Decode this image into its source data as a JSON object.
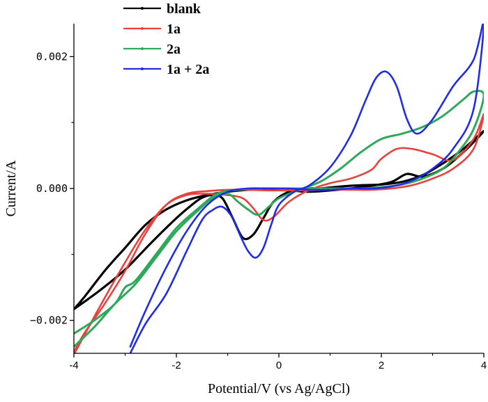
{
  "chart_data": {
    "type": "line",
    "title": "",
    "xlabel": "Potential/V (vs Ag/AgCl)",
    "ylabel": "Current/A",
    "xlim": [
      -4,
      4
    ],
    "ylim": [
      -0.0025,
      0.0025
    ],
    "x_ticks": [
      -4,
      -2,
      0,
      2,
      4
    ],
    "x_tick_labels": [
      "-4",
      "-2",
      "0",
      "2",
      "4"
    ],
    "y_ticks": [
      -0.002,
      0.0,
      0.002
    ],
    "y_tick_labels": [
      "−0.002",
      "0.000",
      "0.002"
    ],
    "grid": false,
    "legend_position": "top-left",
    "series": [
      {
        "name": "blank",
        "color": "#000000",
        "stroke_width": 3.2,
        "x": [
          -4.0,
          -3.5,
          -3.0,
          -2.5,
          -2.0,
          -1.7,
          -1.5,
          -1.3,
          -1.1,
          -0.9,
          -0.7,
          -0.5,
          -0.3,
          -0.1,
          0.2,
          0.6,
          0.8,
          1.2,
          1.6,
          2.0,
          2.4,
          2.8,
          3.2,
          3.6,
          4.0,
          3.6,
          3.2,
          2.8,
          2.5,
          2.2,
          1.8,
          1.4,
          1.0,
          0.6,
          0.2,
          -0.2,
          -0.6,
          -1.0,
          -1.4,
          -1.8,
          -2.2,
          -2.6,
          -3.0,
          -3.4,
          -3.8,
          -4.0
        ],
        "y": [
          -0.00183,
          -0.00155,
          -0.00123,
          -0.00083,
          -0.00045,
          -0.00025,
          -0.00014,
          -0.0001,
          -0.00015,
          -0.00045,
          -0.00075,
          -0.0007,
          -0.00045,
          -0.0002,
          -5e-05,
          0.0,
          0.0,
          3e-05,
          5e-05,
          6e-05,
          0.0001,
          0.0002,
          0.00038,
          0.0006,
          0.00087,
          0.00055,
          0.0003,
          0.00018,
          0.00022,
          0.0001,
          4e-05,
          0.0,
          -3e-05,
          -5e-05,
          -3e-05,
          -2e-05,
          -2e-05,
          -5e-05,
          -0.0001,
          -0.00018,
          -0.00032,
          -0.00055,
          -0.0009,
          -0.00125,
          -0.00165,
          -0.00183
        ]
      },
      {
        "name": "1a",
        "color": "#e8413c",
        "stroke_width": 2.6,
        "x": [
          -4.0,
          -3.5,
          -3.0,
          -2.6,
          -2.2,
          -1.8,
          -1.4,
          -1.0,
          -0.7,
          -0.5,
          -0.3,
          -0.1,
          0.2,
          0.6,
          1.0,
          1.4,
          1.8,
          2.0,
          2.3,
          2.6,
          3.0,
          3.4,
          3.8,
          4.0,
          3.8,
          3.4,
          3.0,
          2.6,
          2.2,
          1.8,
          1.4,
          1.0,
          0.6,
          0.2,
          -0.2,
          -0.6,
          -1.0,
          -1.4,
          -1.8,
          -2.2,
          -2.6,
          -3.0,
          -3.4,
          -3.8,
          -4.0
        ],
        "y": [
          -0.00252,
          -0.0018,
          -0.00112,
          -0.00062,
          -0.00025,
          -0.0001,
          -8e-05,
          -0.0001,
          -0.00015,
          -0.0003,
          -0.00048,
          -0.00043,
          -0.0002,
          -2e-05,
          8e-05,
          0.00015,
          0.00028,
          0.00045,
          0.0006,
          0.0006,
          0.00052,
          0.00043,
          0.00075,
          0.00113,
          0.0006,
          0.0003,
          0.00015,
          5e-05,
          0.0,
          -2e-05,
          -2e-05,
          -2e-05,
          -3e-05,
          -3e-05,
          -3e-05,
          -2e-05,
          -2e-05,
          -4e-05,
          -8e-05,
          -0.00025,
          -0.00068,
          -0.00125,
          -0.00175,
          -0.0022,
          -0.00248
        ]
      },
      {
        "name": "2a",
        "color": "#2ea85a",
        "stroke_width": 3.0,
        "x": [
          -4.0,
          -3.6,
          -3.2,
          -2.8,
          -2.4,
          -2.0,
          -1.6,
          -1.3,
          -1.0,
          -0.8,
          -0.6,
          -0.4,
          -0.2,
          0.0,
          0.4,
          0.8,
          1.2,
          1.6,
          2.0,
          2.4,
          2.8,
          3.2,
          3.6,
          3.8,
          4.0,
          3.8,
          3.5,
          3.2,
          2.8,
          2.4,
          2.0,
          1.6,
          1.2,
          0.8,
          0.4,
          0.0,
          -0.4,
          -0.8,
          -1.2,
          -1.6,
          -2.0,
          -2.4,
          -2.8,
          -3.0,
          -3.2,
          -3.6,
          -4.0
        ],
        "y": [
          -0.0024,
          -0.0021,
          -0.00175,
          -0.00145,
          -0.00105,
          -0.00065,
          -0.00035,
          -0.00015,
          -8e-05,
          -0.0002,
          -0.00032,
          -0.0004,
          -0.00028,
          -0.00015,
          -2e-05,
          0.0001,
          0.0003,
          0.00055,
          0.00075,
          0.00083,
          0.00093,
          0.0011,
          0.00135,
          0.00147,
          0.00141,
          0.0009,
          0.00055,
          0.0003,
          0.00015,
          6e-05,
          2e-05,
          0.0,
          0.0,
          0.0,
          0.0,
          0.0,
          0.0,
          -2e-05,
          -8e-05,
          -0.00032,
          -0.0006,
          -0.001,
          -0.0014,
          -0.0015,
          -0.00175,
          -0.002,
          -0.0022
        ]
      },
      {
        "name": "1a + 2a",
        "color": "#1f2be6",
        "stroke_width": 2.6,
        "x": [
          -2.9,
          -2.6,
          -2.2,
          -1.8,
          -1.5,
          -1.3,
          -1.1,
          -0.9,
          -0.75,
          -0.6,
          -0.45,
          -0.3,
          -0.15,
          0.0,
          0.3,
          0.6,
          1.0,
          1.4,
          1.7,
          1.9,
          2.1,
          2.3,
          2.5,
          2.7,
          3.0,
          3.4,
          3.8,
          4.0,
          3.8,
          3.4,
          3.0,
          2.6,
          2.2,
          1.8,
          1.4,
          1.0,
          0.6,
          0.2,
          -0.2,
          -0.6,
          -1.0,
          -1.4,
          -1.8,
          -2.2,
          -2.6,
          -2.9
        ],
        "y": [
          -0.0025,
          -0.00205,
          -0.0016,
          -0.00095,
          -0.00048,
          -0.00033,
          -0.00028,
          -0.00045,
          -0.00072,
          -0.00095,
          -0.00105,
          -0.0009,
          -0.00055,
          -0.00025,
          -5e-05,
          5e-05,
          0.00032,
          0.0008,
          0.00135,
          0.00168,
          0.00177,
          0.00155,
          0.00105,
          0.00083,
          0.00105,
          0.00155,
          0.00195,
          0.00252,
          0.0012,
          0.0006,
          0.0003,
          0.00012,
          3e-05,
          0.0,
          0.0,
          -2e-05,
          -2e-05,
          0.0,
          0.0,
          0.0,
          -5e-05,
          -0.00025,
          -0.00065,
          -0.0012,
          -0.00185,
          -0.0024
        ]
      }
    ]
  }
}
